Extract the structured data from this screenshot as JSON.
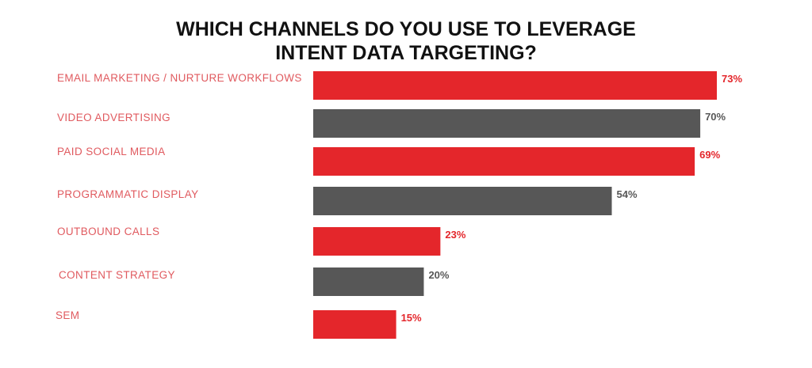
{
  "chart_data": {
    "type": "bar",
    "orientation": "horizontal",
    "title": [
      "WHICH CHANNELS DO YOU USE TO LEVERAGE",
      "INTENT DATA TARGETING?"
    ],
    "categories": [
      "EMAIL MARKETING / NURTURE WORKFLOWS",
      "VIDEO ADVERTISING",
      "PAID SOCIAL MEDIA",
      "PROGRAMMATIC DISPLAY",
      "OUTBOUND CALLS",
      "CONTENT STRATEGY",
      "SEM"
    ],
    "values": [
      73,
      70,
      69,
      54,
      23,
      20,
      15
    ],
    "value_labels": [
      "73%",
      "70%",
      "69%",
      "54%",
      "23%",
      "20%",
      "15%"
    ],
    "unit": "%",
    "xlim": [
      0,
      100
    ],
    "grid": false,
    "legend": "none",
    "colors": {
      "alternating": [
        "#e4262b",
        "#575757"
      ],
      "label_text": "#e05a5f",
      "title": "#111111"
    }
  }
}
